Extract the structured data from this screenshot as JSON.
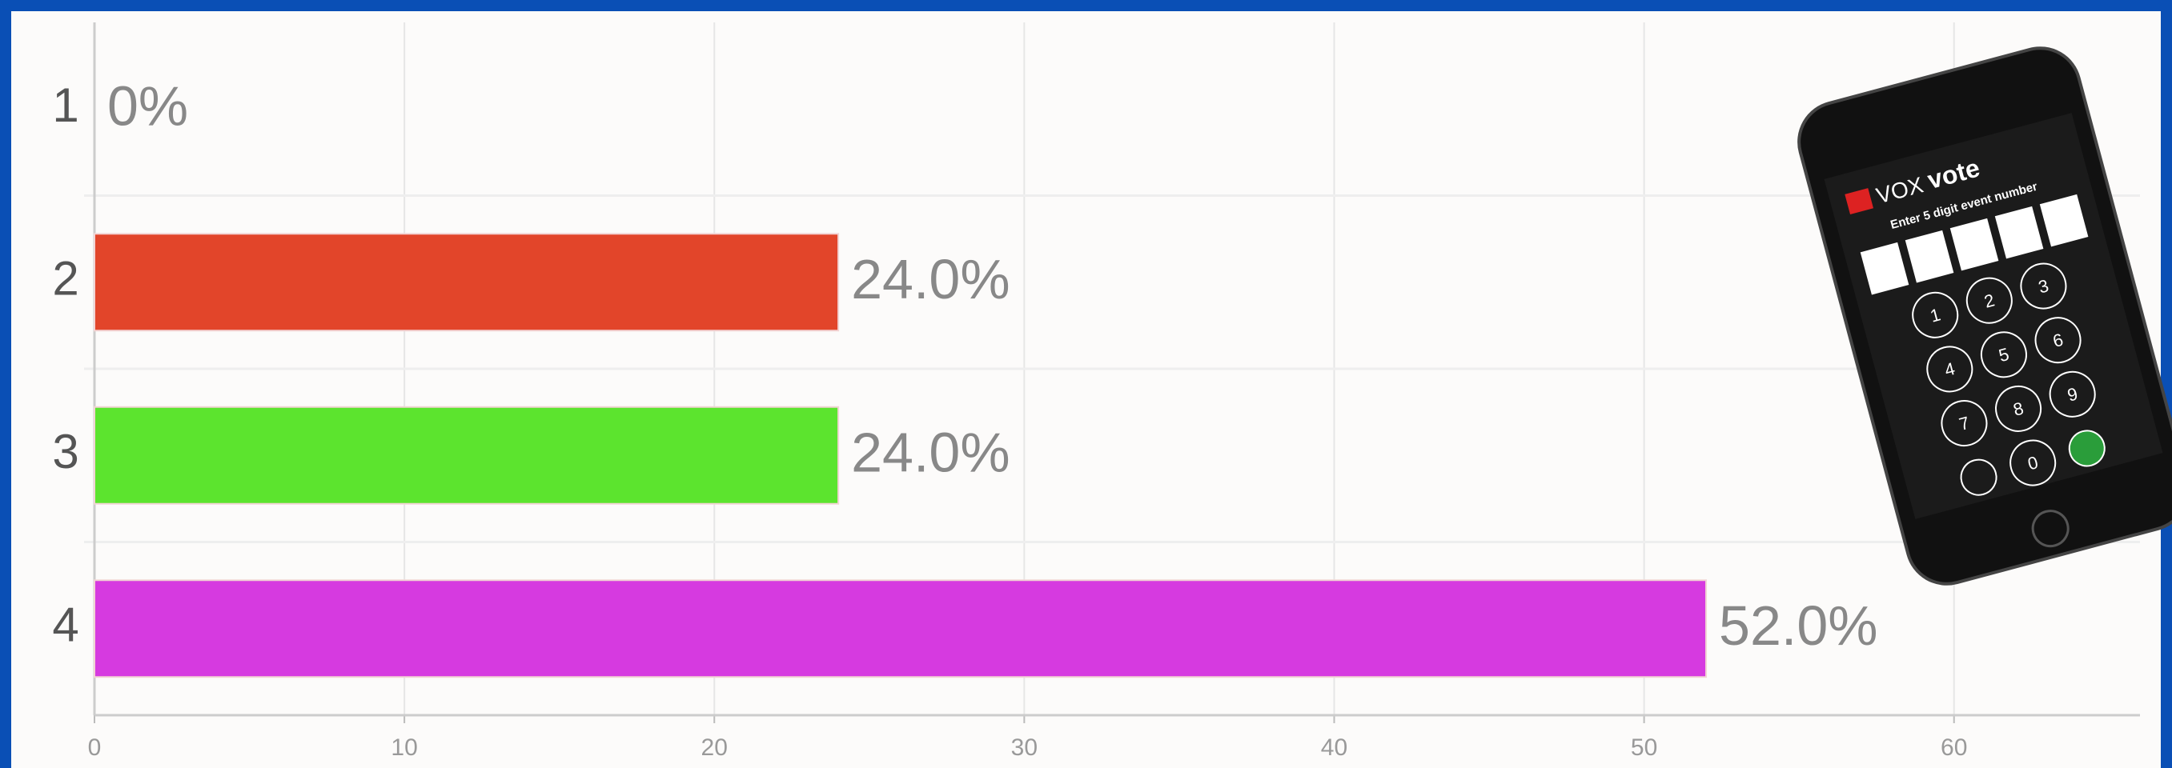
{
  "chart_data": {
    "type": "hbar",
    "categories": [
      "1",
      "2",
      "3",
      "4"
    ],
    "values": [
      0,
      24,
      24,
      52
    ],
    "value_labels": [
      "0%",
      "24.0%",
      "24.0%",
      "52.0%"
    ],
    "colors": [
      "#3366cc",
      "#e2452a",
      "#5ce42e",
      "#d63ae0"
    ],
    "xlim": [
      0,
      66
    ],
    "xticks": [
      0,
      10,
      20,
      30,
      40,
      50,
      60
    ],
    "grid": true
  },
  "phone": {
    "brand_a": "VOX",
    "brand_b": "vote",
    "prompt": "Enter 5 digit event number",
    "keys": [
      "1",
      "2",
      "3",
      "4",
      "5",
      "6",
      "7",
      "8",
      "9",
      "0"
    ]
  }
}
